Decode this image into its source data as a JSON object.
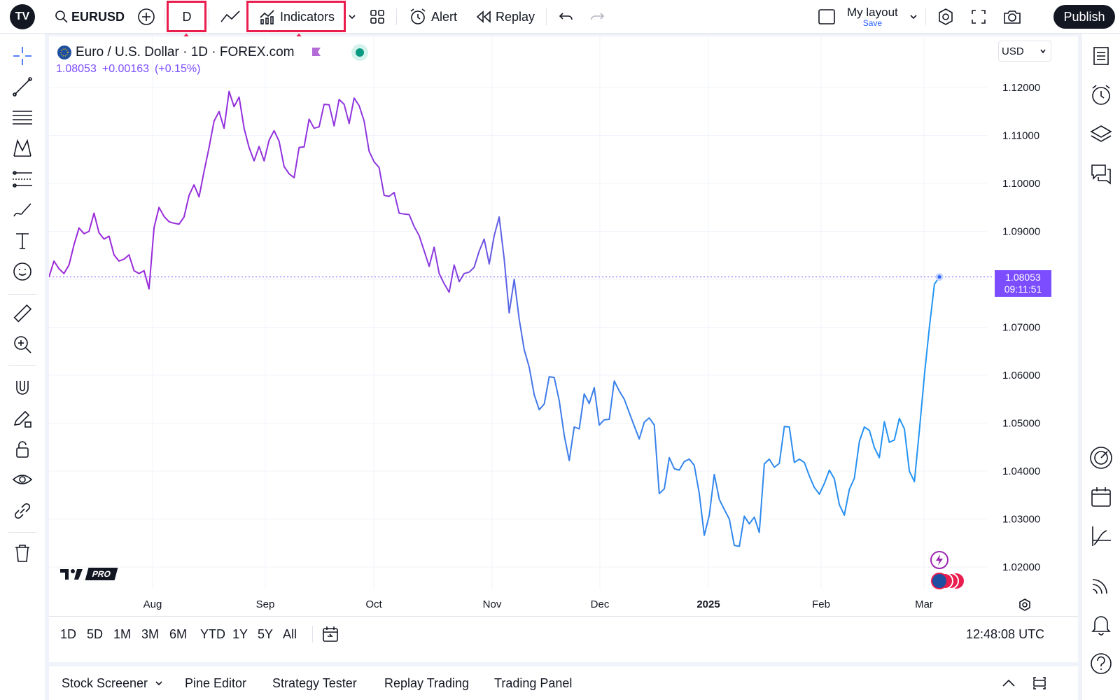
{
  "topbar": {
    "logo": "TV",
    "symbol": "EURUSD",
    "interval": "D",
    "indicators_label": "Indicators",
    "alert_label": "Alert",
    "replay_label": "Replay",
    "layout_name": "My layout",
    "layout_save": "Save",
    "publish_label": "Publish"
  },
  "chart": {
    "title": "Euro / U.S. Dollar · 1D · FOREX.com",
    "last_price": "1.08053",
    "change": "+0.00163",
    "change_pct": "(+0.15%)",
    "currency": "USD",
    "price_tag": "1.08053",
    "countdown": "09:11:51",
    "watermark": "PRO"
  },
  "chart_data": {
    "type": "line",
    "ylim": [
      1.015,
      1.13
    ],
    "y_ticks": [
      "1.12000",
      "1.11000",
      "1.10000",
      "1.09000",
      "1.08000",
      "1.07000",
      "1.06000",
      "1.05000",
      "1.04000",
      "1.03000",
      "1.02000"
    ],
    "x_labels": [
      "Aug",
      "Sep",
      "Oct",
      "Nov",
      "Dec",
      "2025",
      "Feb",
      "Mar"
    ],
    "series": [
      {
        "values": [
          1.0805,
          1.0838,
          1.0822,
          1.0812,
          1.083,
          1.0872,
          1.0907,
          1.0895,
          1.09,
          1.0938,
          1.0897,
          1.0884,
          1.089,
          1.0851,
          1.0838,
          1.0842,
          1.0851,
          1.0818,
          1.0812,
          1.0818,
          1.078,
          1.0908,
          1.095,
          1.0931,
          1.092,
          1.0917,
          1.0915,
          1.093,
          1.0975,
          1.0997,
          1.0972,
          1.1025,
          1.1075,
          1.113,
          1.115,
          1.1115,
          1.1192,
          1.116,
          1.118,
          1.1115,
          1.1075,
          1.1047,
          1.1077,
          1.1047,
          1.109,
          1.111,
          1.1088,
          1.1035,
          1.102,
          1.1012,
          1.1075,
          1.1076,
          1.1134,
          1.1115,
          1.1118,
          1.1165,
          1.1164,
          1.112,
          1.1175,
          1.1165,
          1.1125,
          1.1178,
          1.1162,
          1.113,
          1.1067,
          1.1045,
          1.1033,
          1.0975,
          1.0973,
          1.0981,
          1.0938,
          1.0936,
          1.0935,
          1.091,
          1.0891,
          1.0859,
          1.0827,
          1.0867,
          1.0812,
          1.0791,
          1.0773,
          1.083,
          1.0795,
          1.0812,
          1.0815,
          1.0825,
          1.0859,
          1.0884,
          1.0832,
          1.0891,
          1.093,
          1.0842,
          1.073,
          1.08,
          1.0717,
          1.0653,
          1.0617,
          1.0559,
          1.0528,
          1.054,
          1.0597,
          1.0595,
          1.0547,
          1.0475,
          1.0422,
          1.0492,
          1.0488,
          1.0561,
          1.0541,
          1.0574,
          1.0496,
          1.0507,
          1.0508,
          1.0588,
          1.0567,
          1.055,
          1.0522,
          1.0494,
          1.0467,
          1.0502,
          1.0511,
          1.0496,
          1.0353,
          1.0363,
          1.0428,
          1.0405,
          1.0402,
          1.042,
          1.0425,
          1.0412,
          1.0353,
          1.0266,
          1.0308,
          1.0393,
          1.0341,
          1.032,
          1.03,
          1.0245,
          1.0243,
          1.0306,
          1.029,
          1.0304,
          1.0272,
          1.0415,
          1.0425,
          1.0408,
          1.0416,
          1.0493,
          1.0492,
          1.0418,
          1.0425,
          1.0418,
          1.039,
          1.0366,
          1.0352,
          1.0374,
          1.0402,
          1.0384,
          1.033,
          1.0308,
          1.0362,
          1.0385,
          1.0462,
          1.0492,
          1.0485,
          1.0449,
          1.0428,
          1.0503,
          1.046,
          1.0465,
          1.051,
          1.0488,
          1.04,
          1.0378,
          1.0485,
          1.06,
          1.07,
          1.079,
          1.0805
        ]
      }
    ]
  },
  "time_ranges": [
    "1D",
    "5D",
    "1M",
    "3M",
    "6M",
    "YTD",
    "1Y",
    "5Y",
    "All"
  ],
  "clock": "12:48:08 UTC",
  "bottom_tabs": {
    "screener": "Stock Screener",
    "pine": "Pine Editor",
    "strategy": "Strategy Tester",
    "replay": "Replay Trading",
    "trading": "Trading Panel"
  },
  "colors": {
    "accent": "#7b4dff",
    "line_start": "#9c27d8",
    "line_end": "#2196f3",
    "highlight": "#e91e4f"
  }
}
